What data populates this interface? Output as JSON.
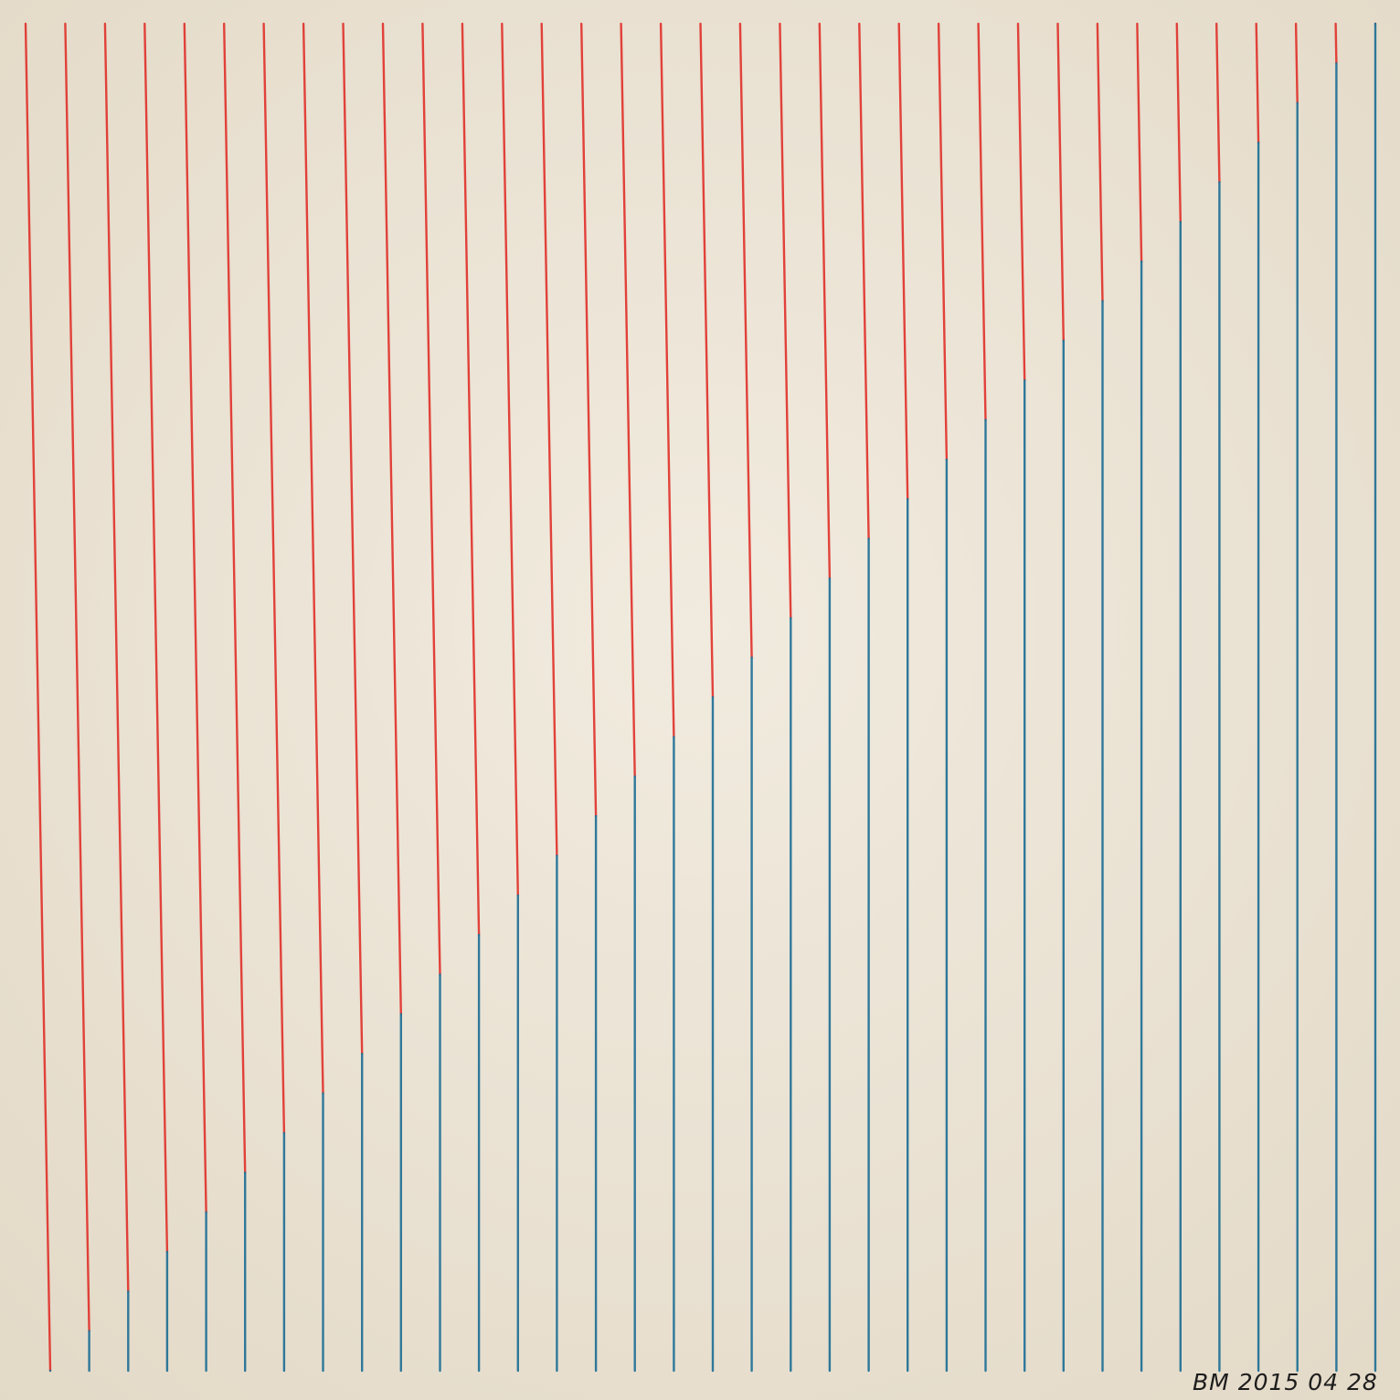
{
  "artwork": {
    "kind": "string-art drawing on paper",
    "colors": {
      "paper": "#e7dfcf",
      "paper_highlight": "#f1ebdf",
      "red_thread": "#e0332c",
      "blue_thread": "#1e6f95"
    }
  },
  "signature": {
    "monogram": "BM",
    "date_text": "2015 04 28"
  }
}
